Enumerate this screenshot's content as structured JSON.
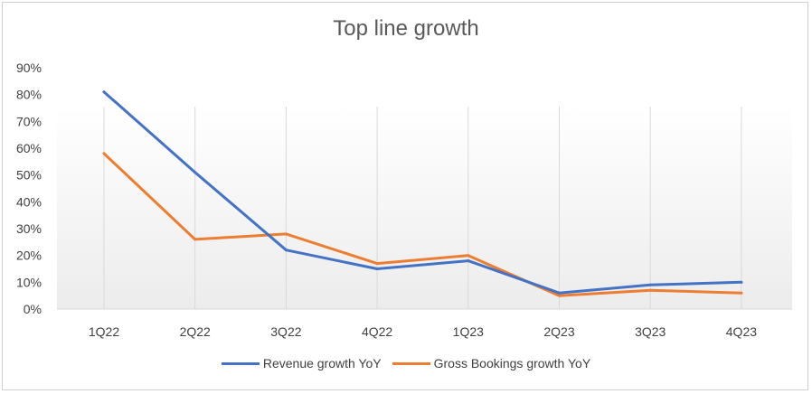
{
  "chart_data": {
    "type": "line",
    "title": "Top line growth",
    "xlabel": "",
    "ylabel": "",
    "categories": [
      "1Q22",
      "2Q22",
      "3Q22",
      "4Q22",
      "1Q23",
      "2Q23",
      "3Q23",
      "4Q23"
    ],
    "yticks": [
      "0%",
      "10%",
      "20%",
      "30%",
      "40%",
      "50%",
      "60%",
      "70%",
      "80%",
      "90%"
    ],
    "ylim": [
      0,
      90
    ],
    "grid": "vertical category lines",
    "legend_position": "bottom",
    "series": [
      {
        "name": "Revenue growth YoY",
        "color": "#4472C4",
        "values": [
          81,
          51,
          22,
          15,
          18,
          6,
          9,
          10
        ]
      },
      {
        "name": "Gross Bookings growth YoY",
        "color": "#ED7D31",
        "values": [
          58,
          26,
          28,
          17,
          20,
          5,
          7,
          6
        ]
      }
    ]
  }
}
